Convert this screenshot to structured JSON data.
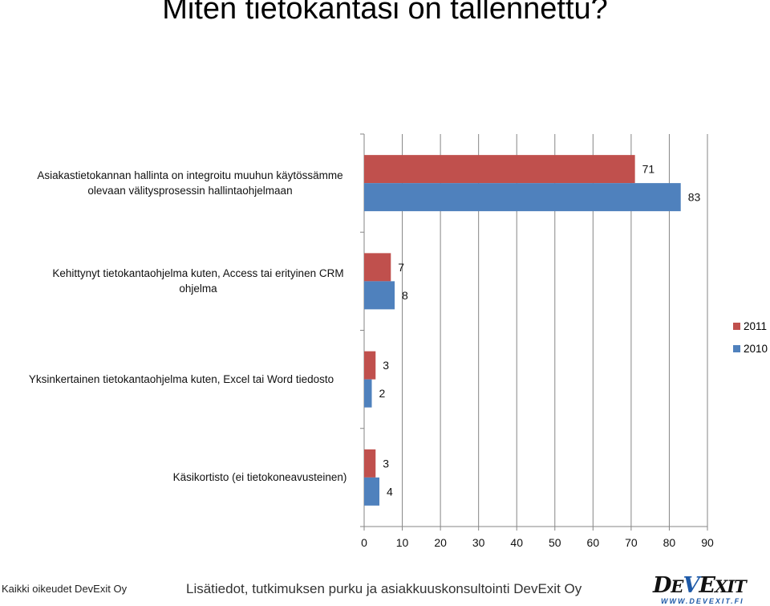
{
  "page": {
    "title": "Miten tietokantasi on tallennettu?",
    "footer_left": "Kaikki oikeudet DevExit Oy",
    "footer_center": "Lisätiedot, tutkimuksen purku ja asiakkuuskonsultointi DevExit Oy",
    "logo_text": "DEVEXIT",
    "logo_url": "WWW.DEVEXIT.FI"
  },
  "chart_data": {
    "type": "bar",
    "orientation": "horizontal",
    "title": "Miten tietokantasi on tallennettu?",
    "categories": [
      "Asiakastietokannan hallinta on integroitu muuhun käytössämme olevaan välitysprosessin hallintaohjelmaan",
      "Kehittynyt tietokantaohjelma kuten, Access tai erityinen CRM ohjelma",
      "Yksinkertainen tietokantaohjelma kuten, Excel tai Word tiedosto",
      "Käsikortisto (ei tietokoneavusteinen)"
    ],
    "series": [
      {
        "name": "2011",
        "color": "#c0504d",
        "values": [
          71,
          7,
          3,
          3
        ]
      },
      {
        "name": "2010",
        "color": "#4f81bd",
        "values": [
          83,
          8,
          2,
          4
        ]
      }
    ],
    "xlim": [
      0,
      90
    ],
    "xticks": [
      "0",
      "10",
      "20",
      "30",
      "40",
      "50",
      "60",
      "70",
      "80",
      "90"
    ],
    "grid": true,
    "legend": "right",
    "data_labels": true
  }
}
